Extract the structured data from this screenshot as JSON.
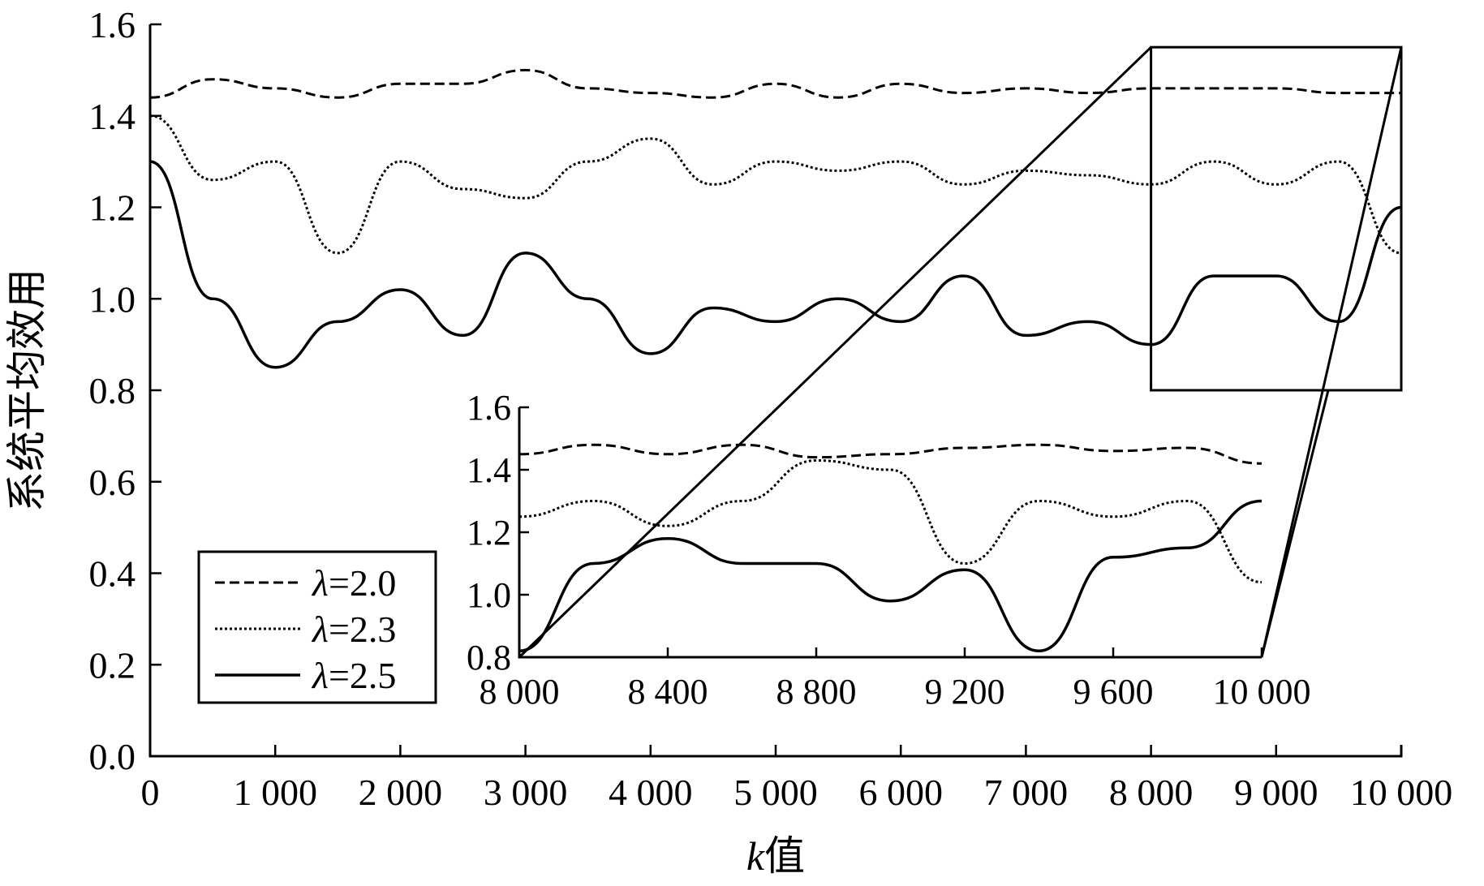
{
  "chart_data": {
    "type": "line",
    "xlabel_italic": "k",
    "xlabel_rest": "值",
    "ylabel": "系统平均效用",
    "xlim": [
      0,
      10000
    ],
    "ylim": [
      0.0,
      1.6
    ],
    "x_ticks": [
      0,
      1000,
      2000,
      3000,
      4000,
      5000,
      6000,
      7000,
      8000,
      9000,
      10000
    ],
    "x_tick_labels": [
      "0",
      "1 000",
      "2 000",
      "3 000",
      "4 000",
      "5 000",
      "6 000",
      "7 000",
      "8 000",
      "9 000",
      "10 000"
    ],
    "y_ticks": [
      0.0,
      0.2,
      0.4,
      0.6,
      0.8,
      1.0,
      1.2,
      1.4,
      1.6
    ],
    "y_tick_labels": [
      "0.0",
      "0.2",
      "0.4",
      "0.6",
      "0.8",
      "1.0",
      "1.2",
      "1.4",
      "1.6"
    ],
    "grid": false,
    "legend_position": "bottom-left",
    "legend_symbol": "λ",
    "series": [
      {
        "name": "λ=2.0",
        "legend_value": "=2.0",
        "dash": "dashed",
        "x": [
          0,
          500,
          1000,
          1500,
          2000,
          2500,
          3000,
          3500,
          4000,
          4500,
          5000,
          5500,
          6000,
          6500,
          7000,
          7500,
          8000,
          8500,
          9000,
          9500,
          10000
        ],
        "y": [
          1.44,
          1.48,
          1.46,
          1.44,
          1.47,
          1.47,
          1.5,
          1.46,
          1.45,
          1.44,
          1.47,
          1.44,
          1.47,
          1.45,
          1.46,
          1.45,
          1.46,
          1.46,
          1.46,
          1.45,
          1.45
        ]
      },
      {
        "name": "λ=2.3",
        "legend_value": "=2.3",
        "dash": "dotted",
        "x": [
          0,
          500,
          1000,
          1500,
          2000,
          2500,
          3000,
          3500,
          4000,
          4500,
          5000,
          5500,
          6000,
          6500,
          7000,
          7500,
          8000,
          8500,
          9000,
          9500,
          10000
        ],
        "y": [
          1.4,
          1.26,
          1.3,
          1.1,
          1.3,
          1.24,
          1.22,
          1.3,
          1.35,
          1.25,
          1.3,
          1.28,
          1.3,
          1.25,
          1.28,
          1.27,
          1.25,
          1.3,
          1.25,
          1.3,
          1.1
        ]
      },
      {
        "name": "λ=2.5",
        "legend_value": "=2.5",
        "dash": "solid",
        "x": [
          0,
          500,
          1000,
          1500,
          2000,
          2500,
          3000,
          3500,
          4000,
          4500,
          5000,
          5500,
          6000,
          6500,
          7000,
          7500,
          8000,
          8500,
          9000,
          9500,
          10000
        ],
        "y": [
          1.3,
          1.0,
          0.85,
          0.95,
          1.02,
          0.92,
          1.1,
          1.0,
          0.88,
          0.98,
          0.95,
          1.0,
          0.95,
          1.05,
          0.92,
          0.95,
          0.9,
          1.05,
          1.05,
          0.95,
          1.2
        ]
      }
    ],
    "zoom_region": {
      "xlim": [
        8000,
        10000
      ],
      "ylim": [
        0.8,
        1.55
      ]
    },
    "inset": {
      "xlim": [
        8000,
        10000
      ],
      "ylim": [
        0.8,
        1.6
      ],
      "x_ticks": [
        8000,
        8400,
        8800,
        9200,
        9600,
        10000
      ],
      "x_tick_labels": [
        "8 000",
        "8 400",
        "8 800",
        "9 200",
        "9 600",
        "10 000"
      ],
      "y_ticks": [
        0.8,
        1.0,
        1.2,
        1.4,
        1.6
      ],
      "y_tick_labels": [
        "0.8",
        "1.0",
        "1.2",
        "1.4",
        "1.6"
      ],
      "series": [
        {
          "name": "λ=2.0",
          "x": [
            8000,
            8200,
            8400,
            8600,
            8800,
            9000,
            9200,
            9400,
            9600,
            9800,
            10000
          ],
          "y": [
            1.45,
            1.48,
            1.45,
            1.48,
            1.44,
            1.45,
            1.47,
            1.48,
            1.46,
            1.47,
            1.42
          ]
        },
        {
          "name": "λ=2.3",
          "x": [
            8000,
            8200,
            8400,
            8600,
            8800,
            9000,
            9200,
            9400,
            9600,
            9800,
            10000
          ],
          "y": [
            1.25,
            1.3,
            1.22,
            1.3,
            1.43,
            1.4,
            1.1,
            1.3,
            1.25,
            1.3,
            1.04
          ]
        },
        {
          "name": "λ=2.5",
          "x": [
            8000,
            8200,
            8400,
            8600,
            8800,
            9000,
            9200,
            9400,
            9600,
            9800,
            10000
          ],
          "y": [
            0.82,
            1.1,
            1.18,
            1.1,
            1.1,
            0.98,
            1.08,
            0.82,
            1.12,
            1.15,
            1.3
          ]
        }
      ]
    }
  }
}
